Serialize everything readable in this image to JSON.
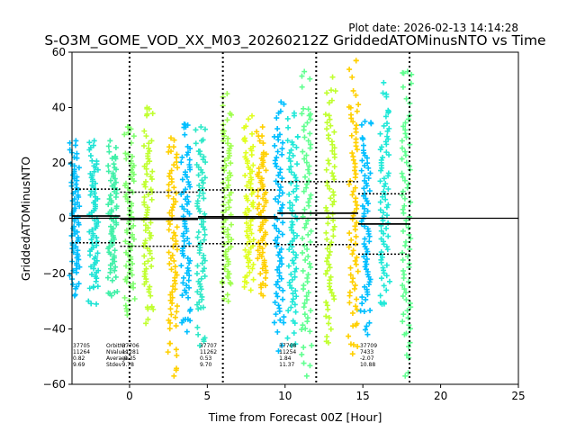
{
  "chart_data": {
    "type": "scatter",
    "title": "S-O3M_GOME_VOD_XX_M03_20260212Z GriddedATOMinusNTO vs Time",
    "plot_date": "Plot date: 2026-02-13 14:14:28",
    "xlabel": "Time from Forecast 00Z [Hour]",
    "ylabel": "GriddedATOMinusNTO",
    "xlim": [
      -3.7,
      25
    ],
    "ylim": [
      -60,
      60
    ],
    "xticks": [
      0,
      5,
      10,
      15,
      20,
      25
    ],
    "yticks": [
      -60,
      -40,
      -20,
      0,
      20,
      40,
      60
    ],
    "zero_line": 0,
    "orbit_boundaries": [
      0,
      6,
      12,
      18
    ],
    "stats_labels": [
      "OrbitNr",
      "NValues",
      "Average",
      "Stdev"
    ],
    "orbits": [
      {
        "orbit": "37705",
        "nvalues": "11264",
        "average": "0.82",
        "stdev": "9.69",
        "t_start": -3.7,
        "t_end": -0.6,
        "mean": 0.82,
        "sd": 9.69
      },
      {
        "orbit": "37706",
        "nvalues": "11281",
        "average": "-0.35",
        "stdev": "9.78",
        "t_start": -0.6,
        "t_end": 4.4,
        "mean": -0.35,
        "sd": 9.78
      },
      {
        "orbit": "37707",
        "nvalues": "11262",
        "average": "0.53",
        "stdev": "9.70",
        "t_start": 4.4,
        "t_end": 9.5,
        "mean": 0.53,
        "sd": 9.7
      },
      {
        "orbit": "37708",
        "nvalues": "11254",
        "average": "1.84",
        "stdev": "11.37",
        "t_start": 9.5,
        "t_end": 14.7,
        "mean": 1.84,
        "sd": 11.37
      },
      {
        "orbit": "37709",
        "nvalues": "7433",
        "average": "-2.07",
        "stdev": "10.88",
        "t_start": 14.7,
        "t_end": 18.0,
        "mean": -2.07,
        "sd": 10.88
      }
    ],
    "point_columns": [
      {
        "t": -3.5,
        "ymin": -28,
        "ymax": 28,
        "color": "#00bfff"
      },
      {
        "t": -2.3,
        "ymin": -31,
        "ymax": 28,
        "color": "#1ee3d5"
      },
      {
        "t": -1.1,
        "ymin": -28,
        "ymax": 28,
        "color": "#40f0a8"
      },
      {
        "t": 0.0,
        "ymin": -35,
        "ymax": 33,
        "color": "#80ff70"
      },
      {
        "t": 1.2,
        "ymin": -38,
        "ymax": 40,
        "color": "#c0ff30"
      },
      {
        "t": 2.8,
        "ymin": -57,
        "ymax": 29,
        "color": "#ffd000"
      },
      {
        "t": 3.6,
        "ymin": -41,
        "ymax": 34,
        "color": "#00bfff"
      },
      {
        "t": 4.6,
        "ymin": -46,
        "ymax": 33,
        "color": "#2ee8c8"
      },
      {
        "t": 6.3,
        "ymin": -30,
        "ymax": 45,
        "color": "#a0ff50"
      },
      {
        "t": 7.7,
        "ymin": -26,
        "ymax": 37,
        "color": "#e0ff20"
      },
      {
        "t": 8.5,
        "ymin": -28,
        "ymax": 33,
        "color": "#ffd000"
      },
      {
        "t": 9.6,
        "ymin": -48,
        "ymax": 42,
        "color": "#00bfff"
      },
      {
        "t": 10.5,
        "ymin": -46,
        "ymax": 38,
        "color": "#20e8d8"
      },
      {
        "t": 11.4,
        "ymin": -57,
        "ymax": 53,
        "color": "#60ff90"
      },
      {
        "t": 12.9,
        "ymin": -45,
        "ymax": 51,
        "color": "#c0ff30"
      },
      {
        "t": 14.4,
        "ymin": -49,
        "ymax": 57,
        "color": "#ffd000"
      },
      {
        "t": 15.2,
        "ymin": -42,
        "ymax": 35,
        "color": "#00bfff"
      },
      {
        "t": 16.4,
        "ymin": -31,
        "ymax": 49,
        "color": "#20e8d8"
      },
      {
        "t": 17.8,
        "ymin": -57,
        "ymax": 53,
        "color": "#60ff90"
      }
    ]
  }
}
